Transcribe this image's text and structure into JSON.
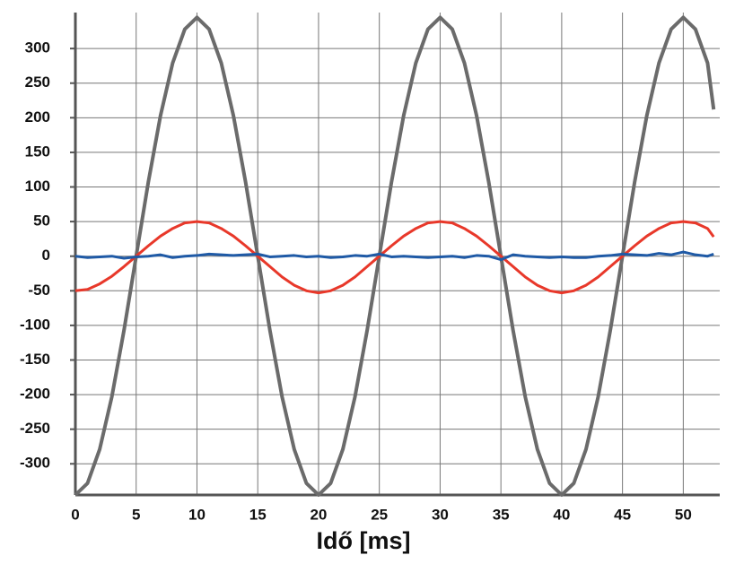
{
  "chart_data": {
    "type": "line",
    "xlabel": "Idő [ms]",
    "x": [
      0,
      1,
      2,
      3,
      4,
      5,
      6,
      7,
      8,
      9,
      10,
      11,
      12,
      13,
      14,
      15,
      16,
      17,
      18,
      19,
      20,
      21,
      22,
      23,
      24,
      25,
      26,
      27,
      28,
      29,
      30,
      31,
      32,
      33,
      34,
      35,
      36,
      37,
      38,
      39,
      40,
      41,
      42,
      43,
      44,
      45,
      46,
      47,
      48,
      49,
      50,
      51,
      52,
      52.5
    ],
    "series": [
      {
        "color": "#6b6b6b",
        "values": [
          -345,
          -328,
          -279,
          -203,
          -107,
          0,
          107,
          203,
          279,
          328,
          345,
          328,
          279,
          203,
          107,
          0,
          -107,
          -203,
          -279,
          -328,
          -345,
          -328,
          -279,
          -203,
          -107,
          0,
          107,
          203,
          279,
          328,
          345,
          328,
          279,
          203,
          107,
          0,
          -107,
          -203,
          -279,
          -328,
          -345,
          -328,
          -279,
          -203,
          -107,
          0,
          107,
          203,
          279,
          328,
          345,
          328,
          279,
          212
        ]
      },
      {
        "color": "#e8382a",
        "values": [
          -50,
          -48,
          -40,
          -29,
          -15,
          0,
          15,
          29,
          40,
          48,
          50,
          48,
          40,
          29,
          15,
          0,
          -15,
          -30,
          -42,
          -50,
          -53,
          -50,
          -42,
          -30,
          -15,
          0,
          15,
          29,
          40,
          48,
          50,
          48,
          40,
          29,
          15,
          0,
          -15,
          -30,
          -42,
          -50,
          -53,
          -50,
          -42,
          -30,
          -15,
          0,
          15,
          29,
          40,
          48,
          50,
          48,
          40,
          28
        ]
      },
      {
        "color": "#1f5aa6",
        "values": [
          0,
          -2,
          -1,
          0,
          -3,
          -1,
          0,
          2,
          -2,
          0,
          1,
          3,
          2,
          1,
          2,
          3,
          -1,
          0,
          1,
          -1,
          0,
          -2,
          -1,
          1,
          0,
          3,
          -1,
          0,
          -1,
          -2,
          -1,
          0,
          -2,
          1,
          0,
          -5,
          2,
          0,
          -1,
          -2,
          -1,
          -2,
          -2,
          0,
          1,
          3,
          2,
          1,
          4,
          2,
          6,
          2,
          0,
          3
        ]
      }
    ],
    "xlim": [
      0,
      53
    ],
    "xticks": [
      0,
      5,
      10,
      15,
      20,
      25,
      30,
      35,
      40,
      45,
      50
    ],
    "ylim": [
      -345,
      352
    ],
    "yticks": [
      -300,
      -250,
      -200,
      -150,
      -100,
      -50,
      0,
      50,
      100,
      150,
      200,
      250,
      300
    ],
    "grid": true
  }
}
